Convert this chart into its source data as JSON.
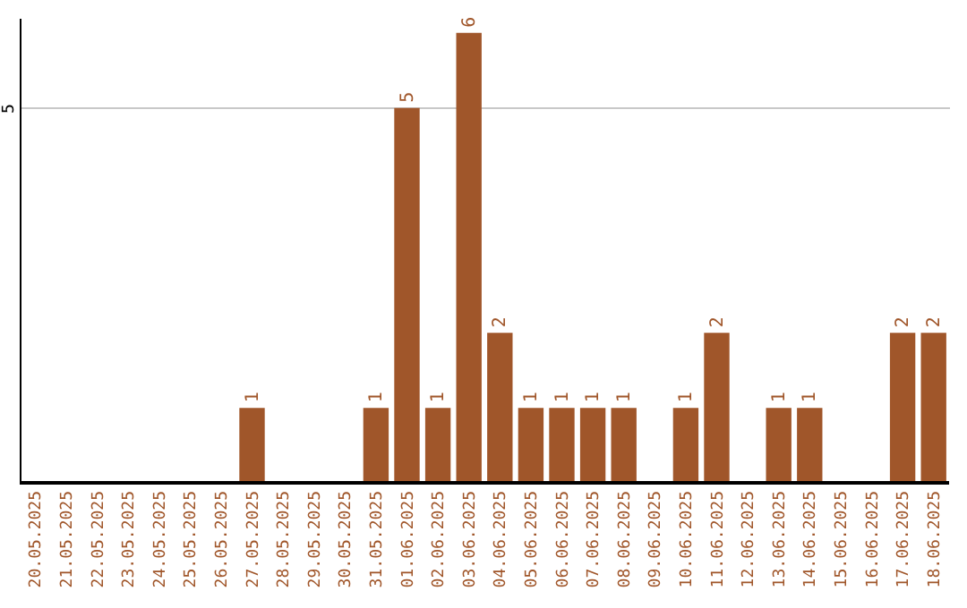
{
  "chart_data": {
    "type": "bar",
    "categories": [
      "20.05.2025",
      "21.05.2025",
      "22.05.2025",
      "23.05.2025",
      "24.05.2025",
      "25.05.2025",
      "26.05.2025",
      "27.05.2025",
      "28.05.2025",
      "29.05.2025",
      "30.05.2025",
      "31.05.2025",
      "01.06.2025",
      "02.06.2025",
      "03.06.2025",
      "04.06.2025",
      "05.06.2025",
      "06.06.2025",
      "07.06.2025",
      "08.06.2025",
      "09.06.2025",
      "10.06.2025",
      "11.06.2025",
      "12.06.2025",
      "13.06.2025",
      "14.06.2025",
      "15.06.2025",
      "16.06.2025",
      "17.06.2025",
      "18.06.2025"
    ],
    "values": [
      0,
      0,
      0,
      0,
      0,
      0,
      0,
      1,
      0,
      0,
      0,
      1,
      5,
      1,
      6,
      2,
      1,
      1,
      1,
      1,
      0,
      1,
      2,
      0,
      1,
      1,
      0,
      0,
      2,
      2
    ],
    "value_labels": [
      null,
      null,
      null,
      null,
      null,
      null,
      null,
      "1",
      null,
      null,
      null,
      "1",
      "5",
      "1",
      "6",
      "2",
      "1",
      "1",
      "1",
      "1",
      null,
      "1",
      "2",
      null,
      "1",
      "1",
      null,
      null,
      "2",
      "2"
    ],
    "color": "#a0562a",
    "ylim": [
      0,
      6.2
    ],
    "yticks": [
      5
    ],
    "grid": "y"
  }
}
